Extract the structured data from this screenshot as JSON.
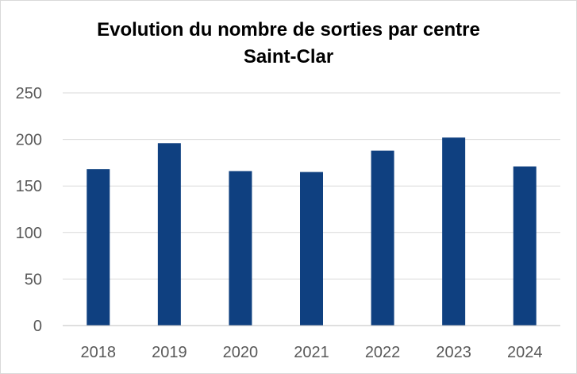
{
  "chart_data": {
    "type": "bar",
    "title": [
      "Evolution du nombre de sorties par centre",
      "Saint-Clar"
    ],
    "categories": [
      "2018",
      "2019",
      "2020",
      "2021",
      "2022",
      "2023",
      "2024"
    ],
    "values": [
      168,
      196,
      166,
      165,
      188,
      202,
      171
    ],
    "xlabel": "",
    "ylabel": "",
    "ylim": [
      0,
      250
    ],
    "yticks": [
      "0",
      "50",
      "100",
      "150",
      "200",
      "250"
    ],
    "grid": true,
    "legend": "none",
    "colors": {
      "bar": "#0f4080",
      "grid": "#d9d9d9",
      "axis": "#bfbfbf"
    }
  }
}
